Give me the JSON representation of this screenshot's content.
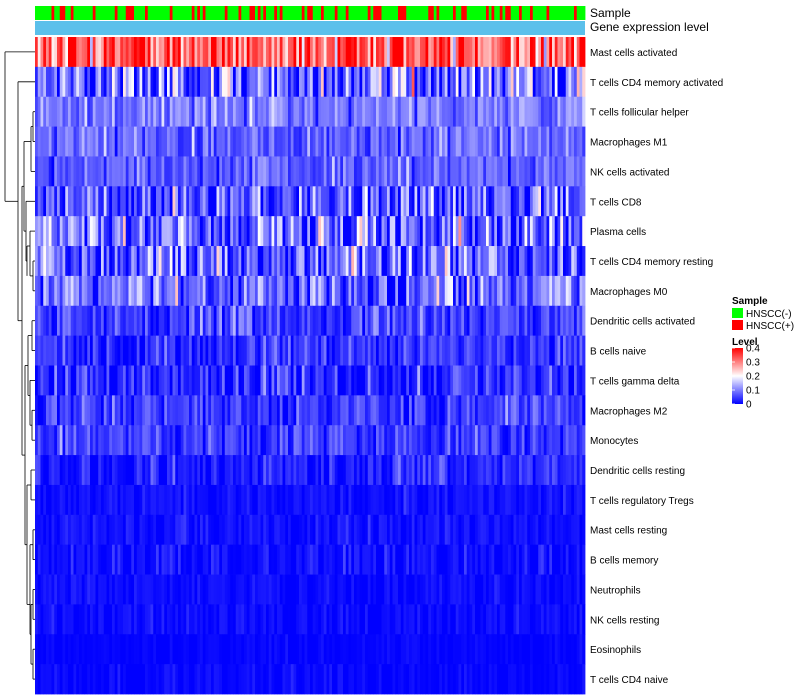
{
  "chart_data": {
    "type": "heatmap",
    "title": "",
    "annotation_tracks": [
      {
        "name": "Sample",
        "label": "Sample"
      },
      {
        "name": "Gene expression level",
        "label": "Gene expression level"
      }
    ],
    "rows": [
      {
        "label": "Mast cells activated",
        "mean": 0.33,
        "spread": 0.08
      },
      {
        "label": "T cells CD4 memory activated",
        "mean": 0.09,
        "spread": 0.09
      },
      {
        "label": "T cells follicular helper",
        "mean": 0.1,
        "spread": 0.035
      },
      {
        "label": "Macrophages M1",
        "mean": 0.08,
        "spread": 0.035
      },
      {
        "label": "NK cells activated",
        "mean": 0.075,
        "spread": 0.03
      },
      {
        "label": "T cells CD8",
        "mean": 0.07,
        "spread": 0.06
      },
      {
        "label": "Plasma cells",
        "mean": 0.09,
        "spread": 0.07
      },
      {
        "label": "T cells CD4 memory resting",
        "mean": 0.08,
        "spread": 0.07
      },
      {
        "label": "Macrophages M0",
        "mean": 0.08,
        "spread": 0.06
      },
      {
        "label": "Dendritic cells activated",
        "mean": 0.045,
        "spread": 0.035
      },
      {
        "label": "B cells naive",
        "mean": 0.04,
        "spread": 0.03
      },
      {
        "label": "T cells gamma delta",
        "mean": 0.035,
        "spread": 0.04
      },
      {
        "label": "Macrophages M2",
        "mean": 0.045,
        "spread": 0.03
      },
      {
        "label": "Monocytes",
        "mean": 0.045,
        "spread": 0.03
      },
      {
        "label": "Dendritic cells resting",
        "mean": 0.025,
        "spread": 0.025
      },
      {
        "label": "T cells regulatory  Tregs",
        "mean": 0.012,
        "spread": 0.012
      },
      {
        "label": "Mast cells resting",
        "mean": 0.012,
        "spread": 0.015
      },
      {
        "label": "B cells memory",
        "mean": 0.01,
        "spread": 0.02
      },
      {
        "label": "Neutrophils",
        "mean": 0.008,
        "spread": 0.012
      },
      {
        "label": "NK cells resting",
        "mean": 0.006,
        "spread": 0.012
      },
      {
        "label": "Eosinophils",
        "mean": 0.003,
        "spread": 0.006
      },
      {
        "label": "T cells CD4 naive",
        "mean": 0.004,
        "spread": 0.01
      }
    ],
    "n_samples": 200,
    "sample_groups": [
      "HNSCC(-)",
      "HNSCC(+)"
    ],
    "sample_group_fraction_positive": 0.28,
    "color_scale": {
      "domain": [
        0,
        0.4
      ],
      "colors": [
        "#0000ff",
        "#ffffff",
        "#ff0000"
      ],
      "midpoint": 0.2,
      "ticks": [
        "0.4",
        "0.3",
        "0.2",
        "0.1",
        "0"
      ]
    },
    "legend": {
      "position": "right",
      "sample_title": "Sample",
      "sample_entries": [
        {
          "label": "HNSCC(-)",
          "color": "#00ff00"
        },
        {
          "label": "HNSCC(+)",
          "color": "#ff0000"
        }
      ],
      "level_title": "Level",
      "expression_track_color": "#5bc0eb"
    },
    "row_dendrogram": true
  }
}
